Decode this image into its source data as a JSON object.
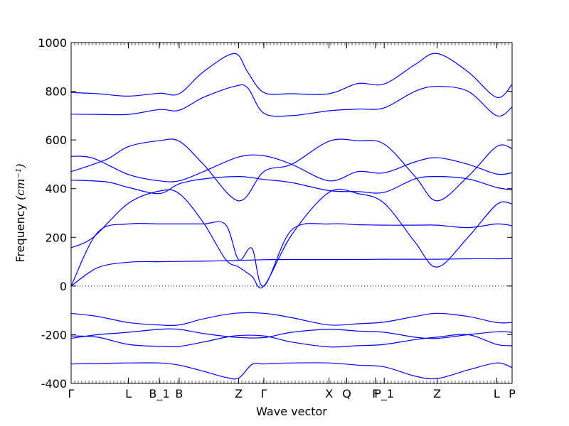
{
  "chart_data": {
    "type": "line",
    "xlabel": "Wave vector",
    "ylabel": "Frequency ",
    "ylabel_unit": "(cm⁻¹)",
    "ylim": [
      -400,
      1000
    ],
    "yticks": [
      -400,
      -200,
      0,
      200,
      400,
      600,
      800,
      1000
    ],
    "zero_line": true,
    "grid": false,
    "line_color": "#0000ff",
    "high_symmetry_points": [
      {
        "label": "Γ",
        "x": 0
      },
      {
        "label": "L",
        "x": 0.13
      },
      {
        "label": "B_1",
        "x": 0.2
      },
      {
        "label": "B",
        "x": 0.245
      },
      {
        "label": "Z",
        "x": 0.38
      },
      {
        "label": "Γ",
        "x": 0.437
      },
      {
        "label": "X",
        "x": 0.585
      },
      {
        "label": "Q",
        "x": 0.625
      },
      {
        "label": "F",
        "x": 0.69
      },
      {
        "label": "P_1",
        "x": 0.71
      },
      {
        "label": "Z",
        "x": 0.83
      },
      {
        "label": "L",
        "x": 0.965
      },
      {
        "label": "P",
        "x": 1.0
      }
    ],
    "series": [
      {
        "x": [
          0,
          0.06,
          0.13,
          0.2,
          0.245,
          0.3,
          0.37,
          0.437,
          0.5,
          0.585,
          0.65,
          0.71,
          0.75,
          0.83,
          0.9,
          0.965,
          1.0
        ],
        "values": [
          0,
          75,
          98,
          100,
          101,
          102,
          105,
          108,
          109,
          109,
          109,
          110,
          110,
          110,
          112,
          112,
          113
        ]
      },
      {
        "x": [
          0,
          0.06,
          0.13,
          0.2,
          0.245,
          0.3,
          0.35,
          0.38,
          0.41,
          0.437,
          0.5,
          0.585,
          0.65,
          0.71,
          0.78,
          0.83,
          0.9,
          0.965,
          1.0
        ],
        "values": [
          0,
          220,
          255,
          255,
          255,
          255,
          253,
          108,
          155,
          0,
          230,
          255,
          252,
          250,
          250,
          250,
          240,
          255,
          248
        ]
      },
      {
        "x": [
          0,
          0.05,
          0.13,
          0.2,
          0.245,
          0.3,
          0.35,
          0.38,
          0.41,
          0.437,
          0.5,
          0.585,
          0.65,
          0.71,
          0.78,
          0.83,
          0.9,
          0.965,
          1.0
        ],
        "values": [
          157,
          200,
          340,
          390,
          380,
          260,
          110,
          78,
          40,
          0,
          210,
          385,
          380,
          340,
          180,
          78,
          200,
          335,
          338
        ]
      },
      {
        "x": [
          0,
          0.08,
          0.13,
          0.2,
          0.245,
          0.3,
          0.38,
          0.437,
          0.5,
          0.585,
          0.65,
          0.71,
          0.78,
          0.83,
          0.9,
          0.965,
          1.0
        ],
        "values": [
          435,
          428,
          405,
          380,
          420,
          440,
          450,
          438,
          425,
          392,
          388,
          385,
          440,
          450,
          440,
          405,
          395
        ]
      },
      {
        "x": [
          0,
          0.08,
          0.13,
          0.2,
          0.245,
          0.3,
          0.38,
          0.437,
          0.5,
          0.585,
          0.65,
          0.71,
          0.78,
          0.83,
          0.9,
          0.965,
          1.0
        ],
        "values": [
          470,
          520,
          573,
          597,
          595,
          500,
          350,
          470,
          500,
          595,
          597,
          583,
          450,
          350,
          450,
          573,
          565
        ]
      },
      {
        "x": [
          0,
          0.05,
          0.13,
          0.2,
          0.245,
          0.3,
          0.38,
          0.437,
          0.5,
          0.585,
          0.65,
          0.71,
          0.78,
          0.83,
          0.9,
          0.965,
          1.0
        ],
        "values": [
          533,
          525,
          458,
          432,
          432,
          470,
          530,
          535,
          500,
          432,
          470,
          465,
          510,
          527,
          500,
          460,
          465
        ]
      },
      {
        "x": [
          0,
          0.06,
          0.13,
          0.2,
          0.245,
          0.3,
          0.37,
          0.4,
          0.437,
          0.5,
          0.585,
          0.65,
          0.71,
          0.78,
          0.83,
          0.9,
          0.965,
          1.0
        ],
        "values": [
          706,
          705,
          705,
          725,
          722,
          775,
          820,
          815,
          710,
          700,
          720,
          727,
          732,
          800,
          820,
          800,
          700,
          735
        ]
      },
      {
        "x": [
          0,
          0.06,
          0.13,
          0.2,
          0.245,
          0.3,
          0.37,
          0.4,
          0.437,
          0.5,
          0.585,
          0.65,
          0.71,
          0.78,
          0.83,
          0.9,
          0.965,
          1.0
        ],
        "values": [
          795,
          790,
          780,
          792,
          790,
          880,
          955,
          880,
          795,
          790,
          790,
          832,
          830,
          910,
          955,
          880,
          775,
          828
        ]
      },
      {
        "x": [
          0,
          0.06,
          0.13,
          0.2,
          0.245,
          0.3,
          0.37,
          0.437,
          0.5,
          0.585,
          0.65,
          0.71,
          0.78,
          0.83,
          0.9,
          0.965,
          1.0
        ],
        "values": [
          -112,
          -125,
          -150,
          -160,
          -160,
          -135,
          -112,
          -112,
          -130,
          -160,
          -155,
          -148,
          -125,
          -112,
          -125,
          -150,
          -150
        ]
      },
      {
        "x": [
          0,
          0.06,
          0.13,
          0.2,
          0.245,
          0.3,
          0.37,
          0.437,
          0.5,
          0.585,
          0.65,
          0.71,
          0.78,
          0.83,
          0.9,
          0.965,
          1.0
        ],
        "values": [
          -205,
          -210,
          -240,
          -248,
          -248,
          -230,
          -205,
          -205,
          -230,
          -250,
          -245,
          -240,
          -220,
          -210,
          -200,
          -240,
          -245
        ]
      },
      {
        "x": [
          0,
          0.06,
          0.13,
          0.2,
          0.245,
          0.3,
          0.37,
          0.437,
          0.5,
          0.585,
          0.65,
          0.71,
          0.78,
          0.83,
          0.9,
          0.965,
          1.0
        ],
        "values": [
          -215,
          -200,
          -190,
          -178,
          -178,
          -195,
          -210,
          -212,
          -190,
          -178,
          -185,
          -190,
          -210,
          -215,
          -200,
          -188,
          -190
        ]
      },
      {
        "x": [
          0,
          0.06,
          0.13,
          0.2,
          0.245,
          0.3,
          0.35,
          0.38,
          0.41,
          0.437,
          0.5,
          0.585,
          0.65,
          0.71,
          0.78,
          0.83,
          0.9,
          0.965,
          1.0
        ],
        "values": [
          -320,
          -318,
          -316,
          -316,
          -325,
          -350,
          -375,
          -378,
          -322,
          -320,
          -316,
          -316,
          -325,
          -332,
          -370,
          -380,
          -345,
          -316,
          -335
        ]
      }
    ]
  }
}
